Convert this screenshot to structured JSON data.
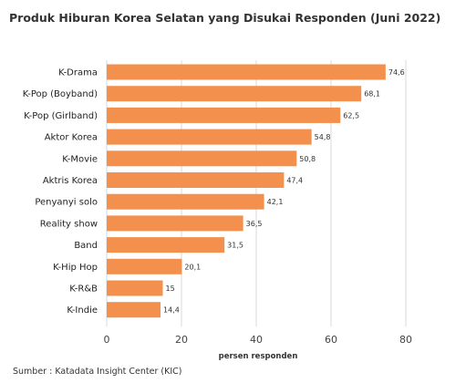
{
  "title": "Produk Hiburan Korea Selatan yang Disukai Responden (Juni 2022)",
  "source": "Sumber : Katadata Insight Center (KIC)",
  "colors": {
    "bar": "#F4904E",
    "grid": "#D8D8D8",
    "text": "#222222"
  },
  "chart_data": {
    "type": "bar",
    "orientation": "horizontal",
    "title": "Produk Hiburan Korea Selatan yang Disukai Responden (Juni 2022)",
    "xlabel": "persen responden",
    "ylabel": "",
    "categories": [
      "K-Drama",
      "K-Pop (Boyband)",
      "K-Pop (Girlband)",
      "Aktor Korea",
      "K-Movie",
      "Aktris Korea",
      "Penyanyi solo",
      "Reality show",
      "Band",
      "K-Hip Hop",
      "K-R&B",
      "K-Indie"
    ],
    "values": [
      74.6,
      68.1,
      62.5,
      54.8,
      50.8,
      47.4,
      42.1,
      36.5,
      31.5,
      20.1,
      15,
      14.4
    ],
    "value_labels": [
      "74,6",
      "68,1",
      "62,5",
      "54,8",
      "50,8",
      "47,4",
      "42,1",
      "36,5",
      "31,5",
      "20,1",
      "15",
      "14,4"
    ],
    "xlim": [
      0,
      80
    ],
    "xticks": [
      0,
      20,
      40,
      60,
      80
    ],
    "grid": true,
    "legend": "none"
  }
}
